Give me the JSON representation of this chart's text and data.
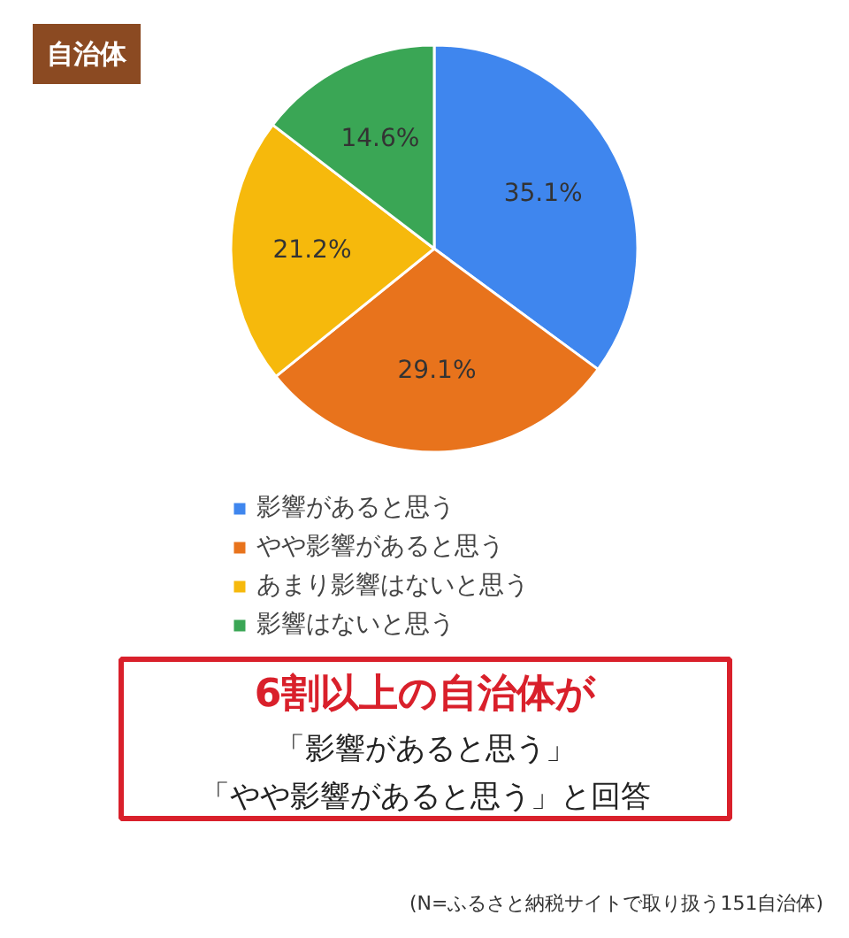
{
  "chart_data": {
    "type": "pie",
    "title": "自治体",
    "categories": [
      "影響があると思う",
      "やや影響があると思う",
      "あまり影響はないと思う",
      "影響はないと思う"
    ],
    "values": [
      35.1,
      29.1,
      21.2,
      14.6
    ],
    "colors": [
      "#3f86ee",
      "#e8731c",
      "#f6b90c",
      "#3aa655"
    ],
    "value_labels": [
      "35.1%",
      "29.1%",
      "21.2%",
      "14.6%"
    ],
    "legend": "bottom",
    "annotations": [
      "6割以上の自治体が",
      "「影響があると思う」",
      "「やや影響があると思う」と回答",
      "(N=ふるさと納税サイトで取り扱う151自治体)"
    ]
  }
}
